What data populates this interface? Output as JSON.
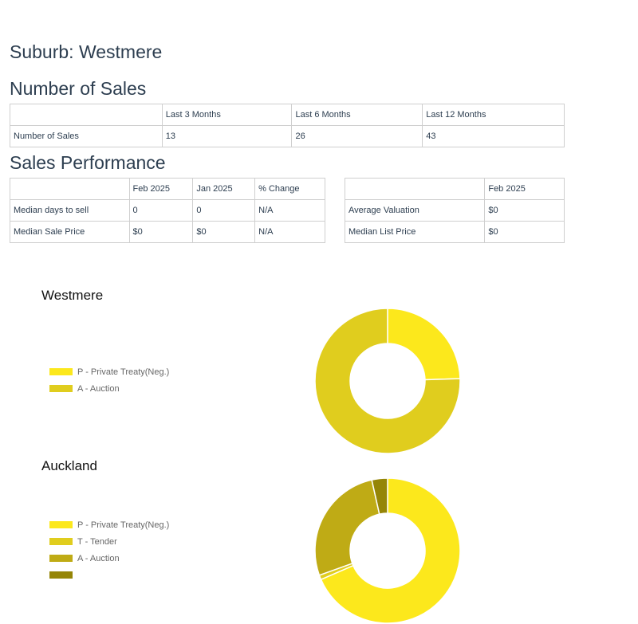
{
  "page": {
    "suburb_title": "Suburb: Westmere",
    "number_of_sales_heading": "Number of Sales",
    "sales_performance_heading": "Sales Performance"
  },
  "sales_table": {
    "headers": [
      "",
      "Last 3 Months",
      "Last 6 Months",
      "Last 12 Months"
    ],
    "rows": [
      [
        "Number of Sales",
        "13",
        "26",
        "43"
      ]
    ]
  },
  "performance_table": {
    "headers": [
      "",
      "Feb 2025",
      "Jan 2025",
      "% Change"
    ],
    "rows": [
      [
        "Median days to sell",
        "0",
        "0",
        "N/A"
      ],
      [
        "Median Sale Price",
        "$0",
        "$0",
        "N/A"
      ]
    ]
  },
  "valuation_table": {
    "headers": [
      "",
      "Feb 2025"
    ],
    "rows": [
      [
        "Average Valuation",
        "$0"
      ],
      [
        "Median List Price",
        "$0"
      ]
    ]
  },
  "chart_data": [
    {
      "type": "pie",
      "title": "Westmere",
      "legend_position": "left",
      "slices": [
        {
          "label": "P - Private Treaty(Neg.)",
          "value": 24.5,
          "color": "#fce81c"
        },
        {
          "label": "A - Auction",
          "value": 75.5,
          "color": "#e0cd1e"
        }
      ]
    },
    {
      "type": "pie",
      "title": "Auckland",
      "legend_position": "left",
      "slices": [
        {
          "label": "P - Private Treaty(Neg.)",
          "value": 68.5,
          "color": "#fce81c"
        },
        {
          "label": "T - Tender",
          "value": 1.0,
          "color": "#e0cd1e"
        },
        {
          "label": "A - Auction",
          "value": 27.0,
          "color": "#bfab15"
        },
        {
          "label": "",
          "value": 3.5,
          "color": "#958507"
        }
      ]
    }
  ]
}
